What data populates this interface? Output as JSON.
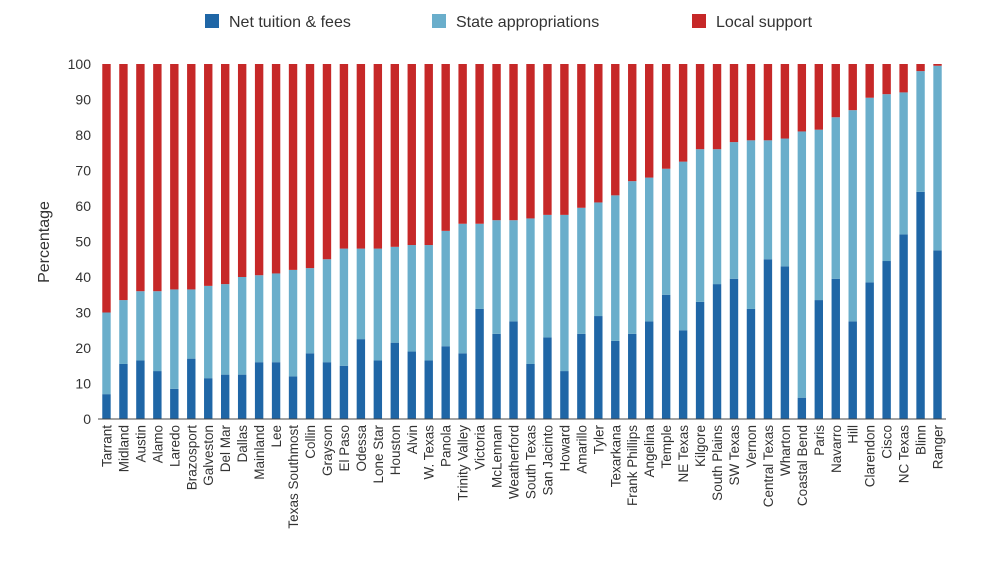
{
  "chart_data": {
    "type": "bar",
    "stacked": true,
    "title": "",
    "xlabel": "",
    "ylabel": "Percentage",
    "ylim": [
      0,
      100
    ],
    "yticks": [
      0,
      10,
      20,
      30,
      40,
      50,
      60,
      70,
      80,
      90,
      100
    ],
    "grid": false,
    "legend_position": "top",
    "categories": [
      "Tarrant",
      "Midland",
      "Austin",
      "Alamo",
      "Laredo",
      "Brazosport",
      "Galveston",
      "Del Mar",
      "Dallas",
      "Mainland",
      "Lee",
      "Texas Southmost",
      "Collin",
      "Grayson",
      "El Paso",
      "Odessa",
      "Lone Star",
      "Houston",
      "Alvin",
      "W. Texas",
      "Panola",
      "Trinity Valley",
      "Victoria",
      "McLennan",
      "Weatherford",
      "South Texas",
      "San Jacinto",
      "Howard",
      "Amarillo",
      "Tyler",
      "Texarkana",
      "Frank Phillips",
      "Angelina",
      "Temple",
      "NE Texas",
      "Kilgore",
      "South Plains",
      "SW Texas",
      "Vernon",
      "Central Texas",
      "Wharton",
      "Coastal Bend",
      "Paris",
      "Navarro",
      "Hill",
      "Clarendon",
      "Cisco",
      "NC Texas",
      "Blinn",
      "Ranger"
    ],
    "series": [
      {
        "name": "Net tuition & fees",
        "color": "#1f66a6",
        "values": [
          7,
          15.5,
          16.5,
          13.5,
          8.5,
          17,
          11.5,
          12.5,
          12.5,
          16,
          16,
          12,
          18.5,
          16,
          15,
          22.5,
          16.5,
          21.5,
          19,
          16.5,
          20.5,
          18.5,
          31,
          24,
          27.5,
          15.5,
          23,
          13.5,
          24,
          29,
          22,
          24,
          27.5,
          35,
          25,
          33,
          38,
          39.5,
          31,
          45,
          43,
          6,
          33.5,
          39.5,
          27.5,
          38.5,
          44.5,
          52,
          64,
          47.5
        ]
      },
      {
        "name": "State appropriations",
        "color": "#6aaecb",
        "values": [
          23,
          18,
          19.5,
          22.5,
          28,
          19.5,
          26,
          25.5,
          27.5,
          24.5,
          25,
          30,
          24,
          29,
          33,
          25.5,
          31.5,
          27,
          30,
          32.5,
          32.5,
          36.5,
          24,
          32,
          28.5,
          41,
          34.5,
          44,
          35.5,
          32,
          41,
          43,
          40.5,
          35.5,
          47.5,
          43,
          38,
          38.5,
          47.5,
          33.5,
          36,
          75,
          48,
          45.5,
          59.5,
          52,
          47,
          40,
          34,
          52
        ]
      },
      {
        "name": "Local support",
        "color": "#c62828",
        "values": [
          70,
          66.5,
          64,
          64,
          63.5,
          63.5,
          62.5,
          62,
          60,
          59.5,
          59,
          58,
          57.5,
          55,
          52,
          52,
          52,
          51.5,
          51,
          51,
          47,
          45,
          45,
          44,
          44,
          43.5,
          42.5,
          42.5,
          40.5,
          39,
          37,
          33,
          32,
          29.5,
          27.5,
          24,
          24,
          22,
          21.5,
          21.5,
          21,
          19,
          18.5,
          15,
          13,
          9.5,
          8.5,
          8,
          2,
          0.5
        ]
      }
    ]
  }
}
